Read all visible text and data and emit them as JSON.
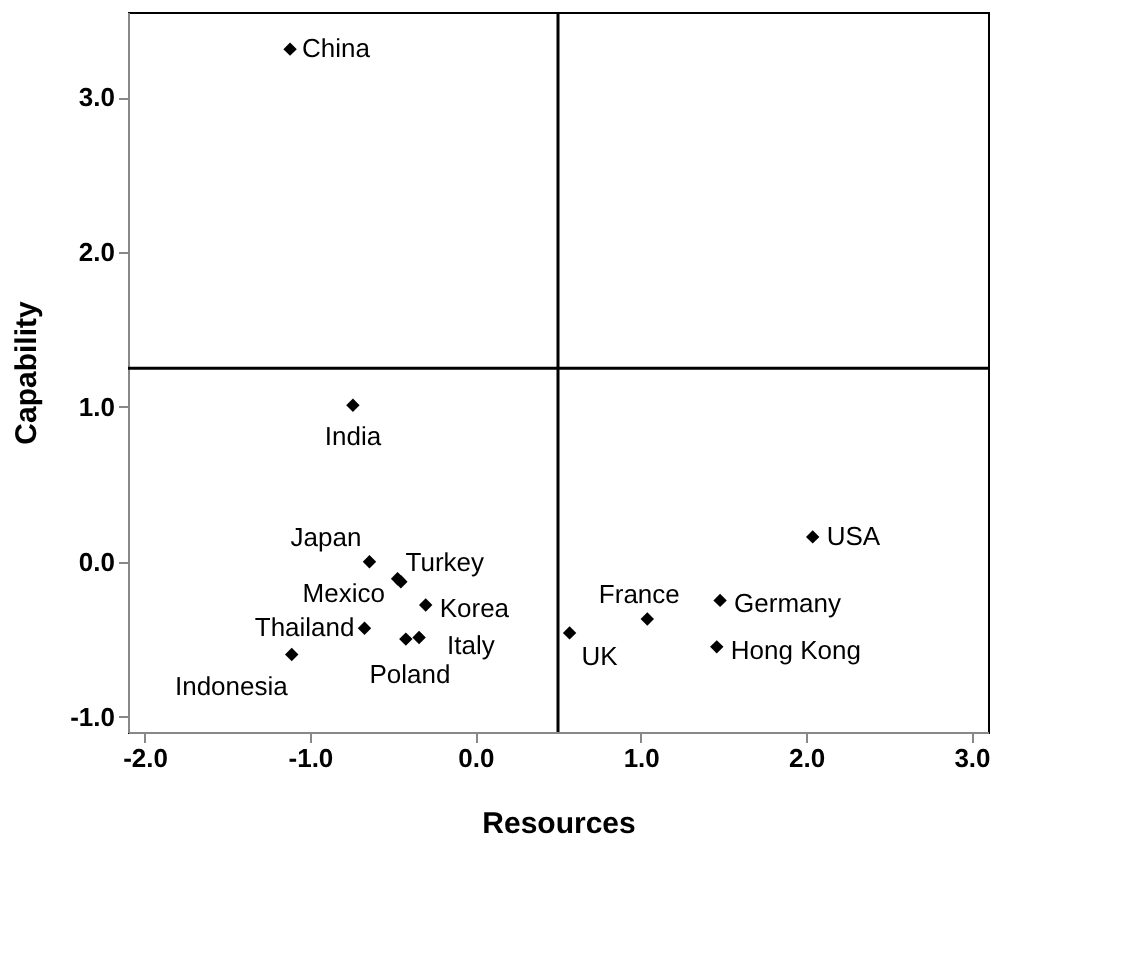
{
  "chart_data": {
    "type": "scatter",
    "xlabel": "Resources",
    "ylabel": "Capability",
    "x": [
      -1.12,
      -0.74,
      -0.64,
      -0.47,
      -0.45,
      -0.3,
      -0.67,
      -1.11,
      -0.42,
      -0.34,
      0.57,
      1.04,
      1.48,
      1.46,
      2.04
    ],
    "series": [
      {
        "color": "#000000",
        "values": [
          3.31,
          1.01,
          0.0,
          -0.11,
          -0.13,
          -0.28,
          -0.43,
          -0.6,
          -0.5,
          -0.49,
          -0.46,
          -0.37,
          -0.25,
          -0.55,
          0.16
        ]
      }
    ],
    "annotations": [
      {
        "text": "China",
        "x": -1.12,
        "y": 3.31
      },
      {
        "text": "India",
        "x": -0.74,
        "y": 1.01
      },
      {
        "text": "Japan",
        "x": -0.64,
        "y": 0.0
      },
      {
        "text": "Turkey",
        "x": -0.47,
        "y": -0.11
      },
      {
        "text": "Mexico",
        "x": -0.45,
        "y": -0.13
      },
      {
        "text": "Korea",
        "x": -0.3,
        "y": -0.28
      },
      {
        "text": "Thailand",
        "x": -0.67,
        "y": -0.43
      },
      {
        "text": "Indonesia",
        "x": -1.11,
        "y": -0.6
      },
      {
        "text": "Poland",
        "x": -0.42,
        "y": -0.5
      },
      {
        "text": "Italy",
        "x": -0.34,
        "y": -0.49
      },
      {
        "text": "UK",
        "x": 0.57,
        "y": -0.46
      },
      {
        "text": "France",
        "x": 1.04,
        "y": -0.37
      },
      {
        "text": "Germany",
        "x": 1.48,
        "y": -0.25
      },
      {
        "text": "Hong Kong",
        "x": 1.46,
        "y": -0.55
      },
      {
        "text": "USA",
        "x": 2.04,
        "y": 0.16
      }
    ],
    "xlim": [
      -2.1,
      3.1
    ],
    "xticks": [
      {
        "value": -2,
        "label": "-2.0"
      },
      {
        "value": -1,
        "label": "-1.0"
      },
      {
        "value": 0,
        "label": "0.0"
      },
      {
        "value": 1,
        "label": "1.0"
      },
      {
        "value": 2,
        "label": "2.0"
      },
      {
        "value": 3,
        "label": "3.0"
      }
    ],
    "ylim": [
      -1.1,
      3.55
    ],
    "yticks": [
      {
        "value": -1,
        "label": "-1.0"
      },
      {
        "value": 0,
        "label": "0.0"
      },
      {
        "value": 1,
        "label": "1.0"
      },
      {
        "value": 2,
        "label": "2.0"
      },
      {
        "value": 3,
        "label": "3.0"
      }
    ],
    "ref_lines": [
      {
        "axis": "x",
        "value": 0.5,
        "color": "#000000"
      },
      {
        "axis": "y",
        "value": 1.25,
        "color": "#000000"
      }
    ],
    "marker": "diamond",
    "grid": false
  }
}
